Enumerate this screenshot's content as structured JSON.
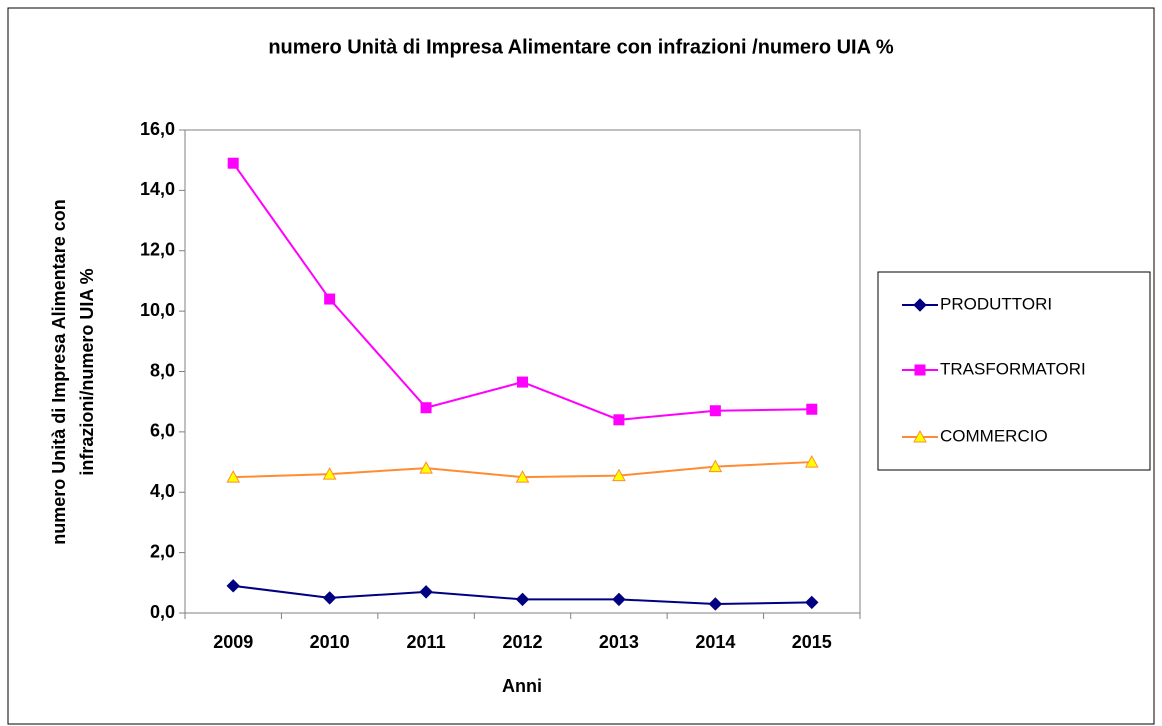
{
  "chart_data": {
    "type": "line",
    "title": "numero Unità di Impresa Alimentare con infrazioni /numero UIA %",
    "x_label": "Anni",
    "y_label": [
      "numero Unità di Impresa Alimentare con",
      "infrazioni/numero UIA %"
    ],
    "categories": [
      "2009",
      "2010",
      "2011",
      "2012",
      "2013",
      "2014",
      "2015"
    ],
    "series": [
      {
        "name": "PRODUTTORI",
        "color": "#000080",
        "marker": "diamond",
        "marker_fill": "#000080",
        "values": [
          0.9,
          0.5,
          0.7,
          0.45,
          0.45,
          0.3,
          0.35
        ]
      },
      {
        "name": "TRASFORMATORI",
        "color": "#ff00ff",
        "marker": "square",
        "marker_fill": "#ff00ff",
        "values": [
          14.9,
          10.4,
          6.8,
          7.65,
          6.4,
          6.7,
          6.75
        ]
      },
      {
        "name": "COMMERCIO",
        "color": "#ff8c33",
        "marker": "triangle",
        "marker_fill": "#ffff00",
        "values": [
          4.5,
          4.6,
          4.8,
          4.5,
          4.55,
          4.85,
          5.0
        ]
      }
    ],
    "ylim": [
      0,
      16
    ],
    "yticks": [
      {
        "value": 0,
        "label": "0,0"
      },
      {
        "value": 2,
        "label": "2,0"
      },
      {
        "value": 4,
        "label": "4,0"
      },
      {
        "value": 6,
        "label": "6,0"
      },
      {
        "value": 8,
        "label": "8,0"
      },
      {
        "value": 10,
        "label": "10,0"
      },
      {
        "value": 12,
        "label": "12,0"
      },
      {
        "value": 14,
        "label": "14,0"
      },
      {
        "value": 16,
        "label": "16,0"
      }
    ],
    "grid": false,
    "legend": "right"
  }
}
